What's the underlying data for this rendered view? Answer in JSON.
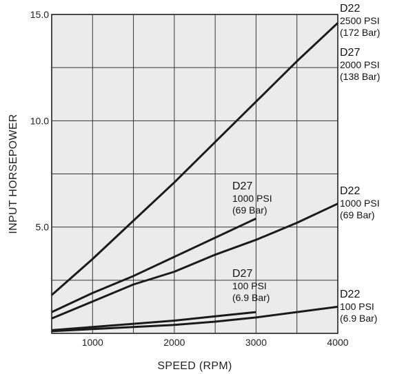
{
  "chart_data": {
    "type": "line",
    "xlabel": "SPEED (RPM)",
    "ylabel": "INPUT HORSEPOWER",
    "xlim": [
      500,
      4000
    ],
    "ylim": [
      0,
      15
    ],
    "x_ticks": [
      1000,
      2000,
      3000,
      4000
    ],
    "x_tick_labels": [
      "1000",
      "2000",
      "3000",
      "4000"
    ],
    "y_ticks": [
      5,
      10,
      15
    ],
    "y_tick_labels": [
      "5.0",
      "10.0",
      "15.0"
    ],
    "grid": true,
    "series": [
      {
        "model": "D22",
        "pressure": "2500 PSI",
        "metric": "(172 Bar)",
        "x": [
          500,
          1000,
          1500,
          2000,
          2500,
          3000,
          3500,
          4000
        ],
        "y": [
          1.8,
          3.5,
          5.3,
          7.1,
          9.0,
          10.9,
          12.8,
          14.6
        ]
      },
      {
        "model": "D27",
        "pressure": "2000 PSI",
        "metric": "(138 Bar)",
        "x": [
          500,
          1000,
          1500,
          2000,
          2500,
          3000,
          3500,
          4000
        ],
        "y": [
          1.8,
          3.5,
          5.3,
          7.1,
          9.0,
          10.9,
          12.8,
          14.6
        ]
      },
      {
        "model": "D27",
        "pressure": "1000 PSI",
        "metric": "(69 Bar)",
        "x": [
          500,
          1000,
          1500,
          2000,
          2500,
          3000
        ],
        "y": [
          1.0,
          1.9,
          2.7,
          3.6,
          4.5,
          5.4
        ]
      },
      {
        "model": "D22",
        "pressure": "1000 PSI",
        "metric": "(69 Bar)",
        "x": [
          500,
          1000,
          1500,
          2000,
          2500,
          3000,
          3500,
          4000
        ],
        "y": [
          0.7,
          1.5,
          2.3,
          2.9,
          3.7,
          4.4,
          5.2,
          6.1
        ]
      },
      {
        "model": "D27",
        "pressure": "100 PSI",
        "metric": "(6.9 Bar)",
        "x": [
          500,
          1000,
          1500,
          2000,
          2500,
          3000
        ],
        "y": [
          0.15,
          0.3,
          0.45,
          0.6,
          0.8,
          1.0
        ]
      },
      {
        "model": "D22",
        "pressure": "100 PSI",
        "metric": "(6.9 Bar)",
        "x": [
          500,
          1000,
          1500,
          2000,
          2500,
          3000,
          3500,
          4000
        ],
        "y": [
          0.1,
          0.2,
          0.3,
          0.4,
          0.55,
          0.75,
          1.0,
          1.25
        ]
      }
    ]
  }
}
